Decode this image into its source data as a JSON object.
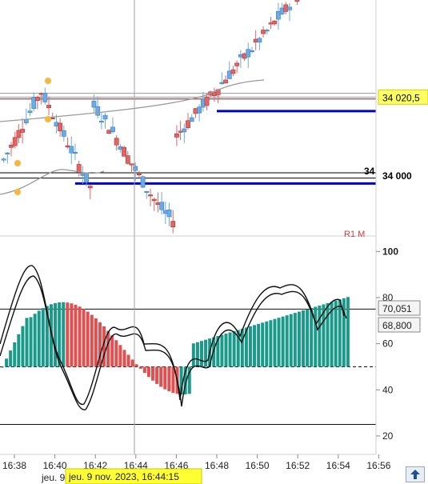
{
  "chart_data": [
    {
      "type": "candlestick",
      "panel": "price",
      "x_ticks": [
        "16:38",
        "16:40",
        "16:42",
        "16:44",
        "16:46",
        "16:48",
        "16:50",
        "16:52",
        "16:54",
        "16:56"
      ],
      "price_labels": [
        {
          "label": "34 020,5",
          "style": "highlight-yellow",
          "value": 34020.5
        },
        {
          "label": "34 000",
          "style": "plain-bold",
          "value": 34000
        }
      ],
      "partial_label_top": "34",
      "partial_label_bottom": "R1 M",
      "horizontal_levels": [
        {
          "value": 34021.5,
          "color": "#9a9a9a"
        },
        {
          "value": 34020.5,
          "color": "#9a9a9a"
        },
        {
          "value": 34020.0,
          "color": "#8b1a1a"
        },
        {
          "value": 34016.8,
          "color": "#0000cc",
          "x_start": "16:48"
        },
        {
          "value": 34000.6,
          "color": "#000000"
        },
        {
          "value": 33999.2,
          "color": "#000000"
        },
        {
          "value": 33997.8,
          "color": "#0000cc",
          "x_start": "16:41"
        }
      ],
      "candle_colors": {
        "up": "#6aaae6",
        "down": "#e06666"
      },
      "ylim": [
        33984,
        34046
      ]
    },
    {
      "type": "oscillator",
      "panel": "indicator",
      "y_ticks": [
        20,
        40,
        60,
        80,
        100
      ],
      "value_labels": [
        "70,051",
        "68,800"
      ],
      "ylim": [
        12,
        106
      ],
      "reference_lines": [
        {
          "value": 75,
          "style": "solid"
        },
        {
          "value": 50,
          "style": "dashed"
        },
        {
          "value": 25,
          "style": "solid"
        }
      ],
      "histogram_colors": {
        "up": "#1a9a8a",
        "down": "#e05050"
      }
    }
  ],
  "cursor": {
    "time_label": "jeu. 9 nov. 2023, 16:44:15",
    "left_label": "jeu. 9"
  },
  "icons": {
    "scroll": "scroll-up-icon"
  }
}
